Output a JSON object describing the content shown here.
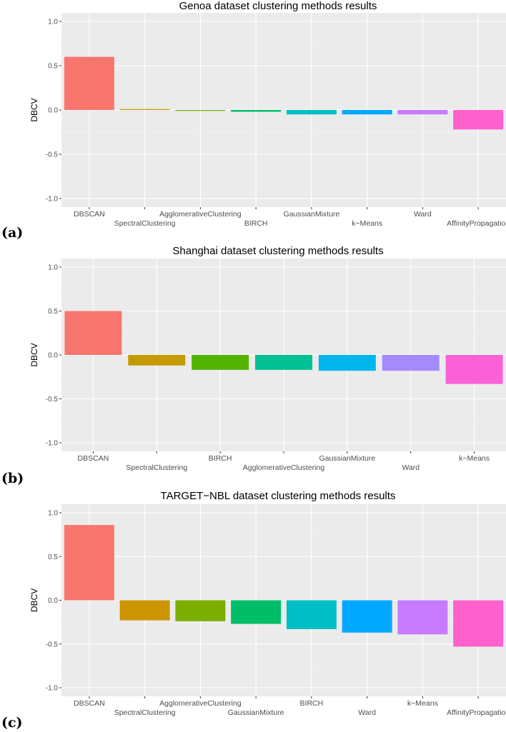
{
  "chart_data": [
    {
      "type": "bar",
      "panel_label": "(a)",
      "title": "Genoa dataset clustering methods results",
      "xlabel": "",
      "ylabel": "DBCV",
      "ylim": [
        -1.0,
        1.0
      ],
      "yticks": [
        "-1.0",
        "-0.5",
        "0.0",
        "0.5",
        "1.0"
      ],
      "categories": [
        "DBSCAN",
        "SpectralClustering",
        "AgglomerativeClustering",
        "BIRCH",
        "GaussianMixture",
        "k-Means",
        "Ward",
        "AffinityPropagation"
      ],
      "values": [
        0.6,
        0.01,
        -0.01,
        -0.02,
        -0.05,
        -0.05,
        -0.05,
        -0.22
      ],
      "colors": [
        "#F8766D",
        "#CD9600",
        "#7CAE00",
        "#00BE67",
        "#00BFC4",
        "#00A9FF",
        "#C77CFF",
        "#FF61CC"
      ],
      "grid": true
    },
    {
      "type": "bar",
      "panel_label": "(b)",
      "title": "Shanghai dataset clustering methods results",
      "xlabel": "",
      "ylabel": "DBCV",
      "ylim": [
        -1.0,
        1.0
      ],
      "yticks": [
        "-1.0",
        "-0.5",
        "0.0",
        "0.5",
        "1.0"
      ],
      "categories": [
        "DBSCAN",
        "SpectralClustering",
        "BIRCH",
        "AgglomerativeClustering",
        "GaussianMixture",
        "Ward",
        "k-Means"
      ],
      "values": [
        0.5,
        -0.12,
        -0.17,
        -0.17,
        -0.18,
        -0.18,
        -0.33
      ],
      "colors": [
        "#F8766D",
        "#C49A00",
        "#53B400",
        "#00C094",
        "#00B6EB",
        "#A58AFF",
        "#FB61D7"
      ],
      "grid": true
    },
    {
      "type": "bar",
      "panel_label": "(c)",
      "title": "TARGET-NBL dataset clustering methods results",
      "xlabel": "",
      "ylabel": "DBCV",
      "ylim": [
        -1.0,
        1.0
      ],
      "yticks": [
        "-1.0",
        "-0.5",
        "0.0",
        "0.5",
        "1.0"
      ],
      "categories": [
        "DBSCAN",
        "SpectralClustering",
        "AgglomerativeClustering",
        "GaussianMixture",
        "BIRCH",
        "Ward",
        "k-Means",
        "AffinityPropagation"
      ],
      "values": [
        0.86,
        -0.23,
        -0.24,
        -0.27,
        -0.33,
        -0.37,
        -0.39,
        -0.53
      ],
      "colors": [
        "#F8766D",
        "#CD9600",
        "#7CAE00",
        "#00BE67",
        "#00BFC4",
        "#00A9FF",
        "#C77CFF",
        "#FF61CC"
      ],
      "grid": true
    }
  ]
}
